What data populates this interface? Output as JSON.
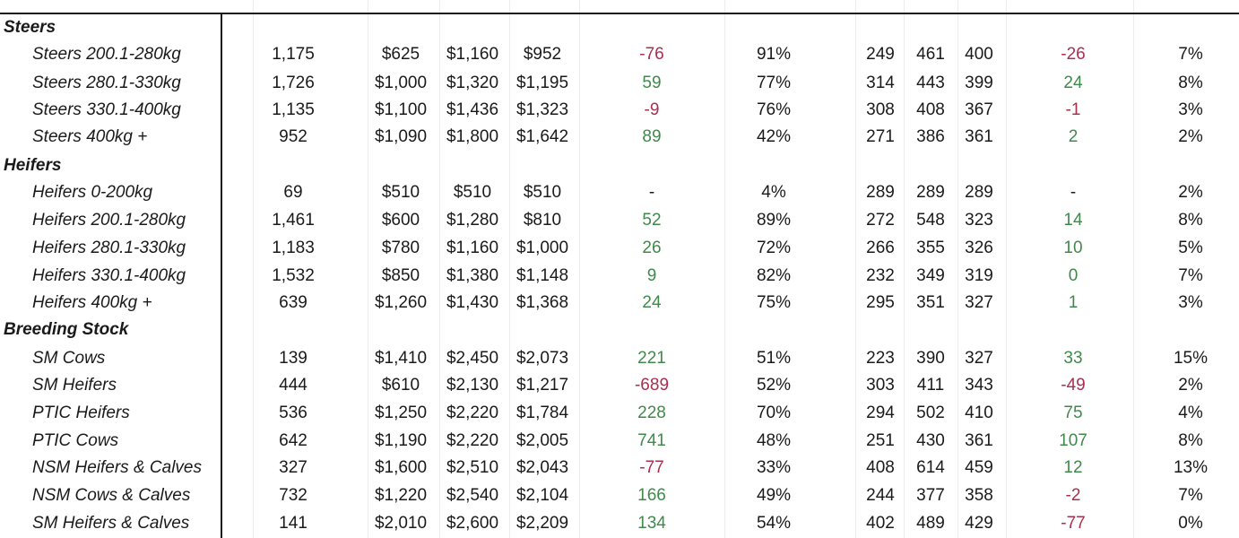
{
  "colors": {
    "positive": "#3f8a4a",
    "negative": "#a8304f",
    "text": "#1a1a1a"
  },
  "rows": [
    {
      "type": "section",
      "label": "Steers"
    },
    {
      "type": "item",
      "label": "Steers 200.1-280kg",
      "head": "1,175",
      "p_min": "$625",
      "p_max": "$1,160",
      "p_avg": "$952",
      "p_chg": "-76",
      "clearance": "91%",
      "c_min": "249",
      "c_max": "461",
      "c_avg": "400",
      "c_chg": "-26",
      "share": "7%"
    },
    {
      "type": "item",
      "label": "Steers 280.1-330kg",
      "head": "1,726",
      "p_min": "$1,000",
      "p_max": "$1,320",
      "p_avg": "$1,195",
      "p_chg": "59",
      "clearance": "77%",
      "c_min": "314",
      "c_max": "443",
      "c_avg": "399",
      "c_chg": "24",
      "share": "8%"
    },
    {
      "type": "item",
      "label": "Steers 330.1-400kg",
      "head": "1,135",
      "p_min": "$1,100",
      "p_max": "$1,436",
      "p_avg": "$1,323",
      "p_chg": "-9",
      "clearance": "76%",
      "c_min": "308",
      "c_max": "408",
      "c_avg": "367",
      "c_chg": "-1",
      "share": "3%"
    },
    {
      "type": "item",
      "label": "Steers 400kg +",
      "head": "952",
      "p_min": "$1,090",
      "p_max": "$1,800",
      "p_avg": "$1,642",
      "p_chg": "89",
      "clearance": "42%",
      "c_min": "271",
      "c_max": "386",
      "c_avg": "361",
      "c_chg": "2",
      "share": "2%"
    },
    {
      "type": "section",
      "label": "Heifers"
    },
    {
      "type": "item",
      "label": "Heifers 0-200kg",
      "head": "69",
      "p_min": "$510",
      "p_max": "$510",
      "p_avg": "$510",
      "p_chg": "-",
      "clearance": "4%",
      "c_min": "289",
      "c_max": "289",
      "c_avg": "289",
      "c_chg": "-",
      "share": "2%"
    },
    {
      "type": "item",
      "label": "Heifers 200.1-280kg",
      "head": "1,461",
      "p_min": "$600",
      "p_max": "$1,280",
      "p_avg": "$810",
      "p_chg": "52",
      "clearance": "89%",
      "c_min": "272",
      "c_max": "548",
      "c_avg": "323",
      "c_chg": "14",
      "share": "8%"
    },
    {
      "type": "item",
      "label": "Heifers 280.1-330kg",
      "head": "1,183",
      "p_min": "$780",
      "p_max": "$1,160",
      "p_avg": "$1,000",
      "p_chg": "26",
      "clearance": "72%",
      "c_min": "266",
      "c_max": "355",
      "c_avg": "326",
      "c_chg": "10",
      "share": "5%"
    },
    {
      "type": "item",
      "label": "Heifers 330.1-400kg",
      "head": "1,532",
      "p_min": "$850",
      "p_max": "$1,380",
      "p_avg": "$1,148",
      "p_chg": "9",
      "clearance": "82%",
      "c_min": "232",
      "c_max": "349",
      "c_avg": "319",
      "c_chg": "0",
      "share": "7%"
    },
    {
      "type": "item",
      "label": "Heifers 400kg +",
      "head": "639",
      "p_min": "$1,260",
      "p_max": "$1,430",
      "p_avg": "$1,368",
      "p_chg": "24",
      "clearance": "75%",
      "c_min": "295",
      "c_max": "351",
      "c_avg": "327",
      "c_chg": "1",
      "share": "3%"
    },
    {
      "type": "section",
      "label": "Breeding Stock"
    },
    {
      "type": "item",
      "label": "SM Cows",
      "head": "139",
      "p_min": "$1,410",
      "p_max": "$2,450",
      "p_avg": "$2,073",
      "p_chg": "221",
      "clearance": "51%",
      "c_min": "223",
      "c_max": "390",
      "c_avg": "327",
      "c_chg": "33",
      "share": "15%"
    },
    {
      "type": "item",
      "label": "SM Heifers",
      "head": "444",
      "p_min": "$610",
      "p_max": "$2,130",
      "p_avg": "$1,217",
      "p_chg": "-689",
      "clearance": "52%",
      "c_min": "303",
      "c_max": "411",
      "c_avg": "343",
      "c_chg": "-49",
      "share": "2%"
    },
    {
      "type": "item",
      "label": "PTIC Heifers",
      "head": "536",
      "p_min": "$1,250",
      "p_max": "$2,220",
      "p_avg": "$1,784",
      "p_chg": "228",
      "clearance": "70%",
      "c_min": "294",
      "c_max": "502",
      "c_avg": "410",
      "c_chg": "75",
      "share": "4%"
    },
    {
      "type": "item",
      "label": "PTIC Cows",
      "head": "642",
      "p_min": "$1,190",
      "p_max": "$2,220",
      "p_avg": "$2,005",
      "p_chg": "741",
      "clearance": "48%",
      "c_min": "251",
      "c_max": "430",
      "c_avg": "361",
      "c_chg": "107",
      "share": "8%"
    },
    {
      "type": "item",
      "label": "NSM Heifers & Calves",
      "head": "327",
      "p_min": "$1,600",
      "p_max": "$2,510",
      "p_avg": "$2,043",
      "p_chg": "-77",
      "clearance": "33%",
      "c_min": "408",
      "c_max": "614",
      "c_avg": "459",
      "c_chg": "12",
      "share": "13%"
    },
    {
      "type": "item",
      "label": "NSM Cows & Calves",
      "head": "732",
      "p_min": "$1,220",
      "p_max": "$2,540",
      "p_avg": "$2,104",
      "p_chg": "166",
      "clearance": "49%",
      "c_min": "244",
      "c_max": "377",
      "c_avg": "358",
      "c_chg": "-2",
      "share": "7%"
    },
    {
      "type": "item",
      "label": "SM Heifers & Calves",
      "head": "141",
      "p_min": "$2,010",
      "p_max": "$2,600",
      "p_avg": "$2,209",
      "p_chg": "134",
      "clearance": "54%",
      "c_min": "402",
      "c_max": "489",
      "c_avg": "429",
      "c_chg": "-77",
      "share": "0%"
    }
  ]
}
